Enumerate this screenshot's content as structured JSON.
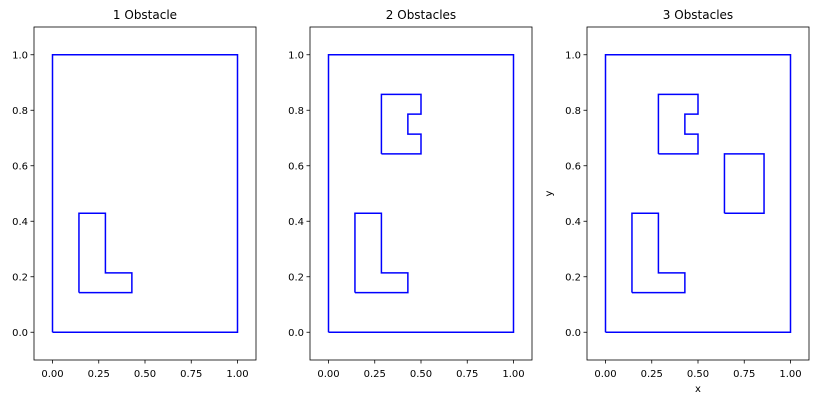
{
  "chart_data": [
    {
      "type": "line",
      "title": "1 Obstacle",
      "xlabel": "",
      "ylabel": "",
      "xlim": [
        -0.1,
        1.1
      ],
      "ylim": [
        -0.1,
        1.1
      ],
      "xticks": [
        "0.00",
        "0.25",
        "0.50",
        "0.75",
        "1.00"
      ],
      "yticks": [
        "0.0",
        "0.2",
        "0.4",
        "0.6",
        "0.8",
        "1.0"
      ],
      "grid": false,
      "line_color": "#0000ff",
      "series": [
        {
          "values": [
            [
              0,
              0
            ],
            [
              1,
              0
            ],
            [
              1,
              1
            ],
            [
              0,
              1
            ],
            [
              0,
              0
            ]
          ]
        },
        {
          "values": [
            [
              0.143,
              0.143
            ],
            [
              0.429,
              0.143
            ],
            [
              0.429,
              0.214
            ],
            [
              0.286,
              0.214
            ],
            [
              0.286,
              0.429
            ],
            [
              0.143,
              0.429
            ],
            [
              0.143,
              0.143
            ]
          ]
        }
      ]
    },
    {
      "type": "line",
      "title": "2 Obstacles",
      "xlabel": "",
      "ylabel": "",
      "xlim": [
        -0.1,
        1.1
      ],
      "ylim": [
        -0.1,
        1.1
      ],
      "xticks": [
        "0.00",
        "0.25",
        "0.50",
        "0.75",
        "1.00"
      ],
      "yticks": [
        "0.0",
        "0.2",
        "0.4",
        "0.6",
        "0.8",
        "1.0"
      ],
      "grid": false,
      "line_color": "#0000ff",
      "series": [
        {
          "values": [
            [
              0,
              0
            ],
            [
              1,
              0
            ],
            [
              1,
              1
            ],
            [
              0,
              1
            ],
            [
              0,
              0
            ]
          ]
        },
        {
          "values": [
            [
              0.143,
              0.143
            ],
            [
              0.429,
              0.143
            ],
            [
              0.429,
              0.214
            ],
            [
              0.286,
              0.214
            ],
            [
              0.286,
              0.429
            ],
            [
              0.143,
              0.429
            ],
            [
              0.143,
              0.143
            ]
          ]
        },
        {
          "values": [
            [
              0.286,
              0.643
            ],
            [
              0.5,
              0.643
            ],
            [
              0.5,
              0.714
            ],
            [
              0.429,
              0.714
            ],
            [
              0.429,
              0.786
            ],
            [
              0.5,
              0.786
            ],
            [
              0.5,
              0.857
            ],
            [
              0.286,
              0.857
            ],
            [
              0.286,
              0.643
            ]
          ]
        }
      ]
    },
    {
      "type": "line",
      "title": "3 Obstacles",
      "xlabel": "x",
      "ylabel": "y",
      "xlim": [
        -0.1,
        1.1
      ],
      "ylim": [
        -0.1,
        1.1
      ],
      "xticks": [
        "0.00",
        "0.25",
        "0.50",
        "0.75",
        "1.00"
      ],
      "yticks": [
        "0.0",
        "0.2",
        "0.4",
        "0.6",
        "0.8",
        "1.0"
      ],
      "grid": false,
      "line_color": "#0000ff",
      "series": [
        {
          "values": [
            [
              0,
              0
            ],
            [
              1,
              0
            ],
            [
              1,
              1
            ],
            [
              0,
              1
            ],
            [
              0,
              0
            ]
          ]
        },
        {
          "values": [
            [
              0.143,
              0.143
            ],
            [
              0.429,
              0.143
            ],
            [
              0.429,
              0.214
            ],
            [
              0.286,
              0.214
            ],
            [
              0.286,
              0.429
            ],
            [
              0.143,
              0.429
            ],
            [
              0.143,
              0.143
            ]
          ]
        },
        {
          "values": [
            [
              0.286,
              0.643
            ],
            [
              0.5,
              0.643
            ],
            [
              0.5,
              0.714
            ],
            [
              0.429,
              0.714
            ],
            [
              0.429,
              0.786
            ],
            [
              0.5,
              0.786
            ],
            [
              0.5,
              0.857
            ],
            [
              0.286,
              0.857
            ],
            [
              0.286,
              0.643
            ]
          ]
        },
        {
          "values": [
            [
              0.643,
              0.429
            ],
            [
              0.857,
              0.429
            ],
            [
              0.857,
              0.643
            ],
            [
              0.643,
              0.643
            ],
            [
              0.643,
              0.429
            ]
          ]
        }
      ]
    }
  ]
}
